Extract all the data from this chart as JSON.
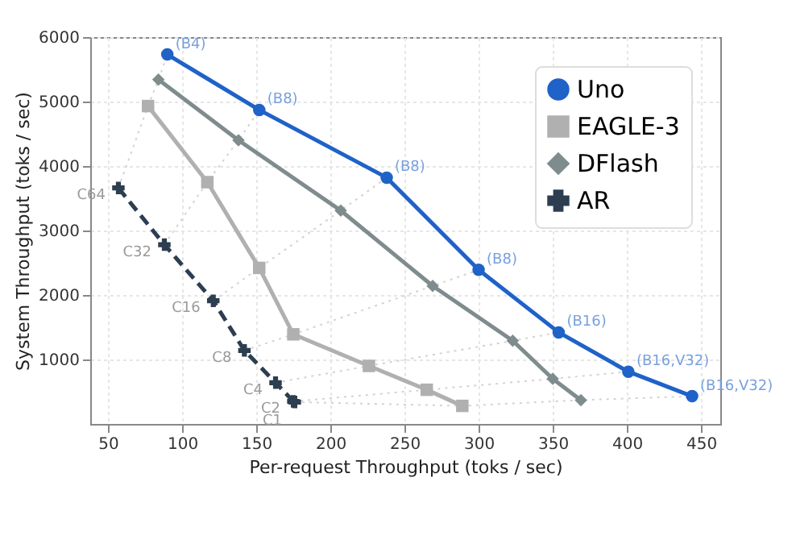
{
  "chart_data": {
    "type": "line",
    "xlabel": "Per-request Throughput (toks / sec)",
    "ylabel": "System Throughput (toks / sec)",
    "xlim": [
      38,
      463
    ],
    "ylim": [
      0,
      6000
    ],
    "xticks": [
      50,
      100,
      150,
      200,
      250,
      300,
      350,
      400,
      450
    ],
    "yticks": [
      1000,
      2000,
      3000,
      4000,
      5000,
      6000
    ],
    "grid": true,
    "legend": "top right",
    "series": [
      {
        "x": [
          57,
          77,
          84,
          90
        ],
        "values": [
          3660,
          4930,
          5340,
          5730
        ],
        "color": "#d3d3d3",
        "line_style": "dotted",
        "marker": "none"
      },
      {
        "x": [
          88,
          117,
          138,
          152
        ],
        "values": [
          2780,
          3750,
          4400,
          4870
        ],
        "color": "#d3d3d3",
        "line_style": "dotted",
        "marker": "none"
      },
      {
        "x": [
          121,
          152,
          207,
          238
        ],
        "values": [
          1910,
          2420,
          3310,
          3820
        ],
        "color": "#d3d3d3",
        "line_style": "dotted",
        "marker": "none"
      },
      {
        "x": [
          142,
          175,
          269,
          300
        ],
        "values": [
          1140,
          1390,
          2140,
          2390
        ],
        "color": "#d3d3d3",
        "line_style": "dotted",
        "marker": "none"
      },
      {
        "x": [
          163,
          226,
          323,
          354
        ],
        "values": [
          640,
          900,
          1290,
          1420
        ],
        "color": "#d3d3d3",
        "line_style": "dotted",
        "marker": "none"
      },
      {
        "x": [
          175,
          265,
          350,
          401
        ],
        "values": [
          350,
          530,
          700,
          810
        ],
        "color": "#d3d3d3",
        "line_style": "dotted",
        "marker": "none"
      },
      {
        "x": [
          176,
          289,
          369,
          444
        ],
        "values": [
          340,
          280,
          370,
          430
        ],
        "color": "#d3d3d3",
        "line_style": "dotted",
        "marker": "none"
      },
      {
        "name": "Uno",
        "color": "#1f62c8",
        "marker": "circle",
        "line_style": "solid",
        "x": [
          90,
          152,
          238,
          300,
          354,
          401,
          444
        ],
        "values": [
          5730,
          4870,
          3820,
          2390,
          1420,
          810,
          430
        ],
        "value_labels": [
          "(B4)",
          "(B8)",
          "(B8)",
          "(B8)",
          "(B16)",
          "(B16,V32)",
          "(B16,V32)"
        ]
      },
      {
        "name": "EAGLE-3",
        "color": "#b0b0b0",
        "marker": "square",
        "line_style": "solid",
        "x": [
          77,
          117,
          152,
          175,
          226,
          265,
          289
        ],
        "values": [
          4930,
          3750,
          2420,
          1390,
          900,
          530,
          280
        ]
      },
      {
        "name": "DFlash",
        "color": "#7f8c8d",
        "marker": "diamond",
        "line_style": "solid",
        "x": [
          84,
          138,
          207,
          269,
          323,
          350,
          369
        ],
        "values": [
          5340,
          4400,
          3310,
          2140,
          1290,
          700,
          370
        ]
      },
      {
        "name": "AR",
        "color": "#2c3e50",
        "marker": "cross",
        "line_style": "dashed",
        "x": [
          57,
          88,
          121,
          142,
          163,
          175,
          176
        ],
        "values": [
          3660,
          2780,
          1910,
          1140,
          640,
          350,
          340
        ],
        "value_labels": [
          "C64",
          "C32",
          "C16",
          "C8",
          "C4",
          "C2",
          "C1"
        ]
      }
    ]
  }
}
